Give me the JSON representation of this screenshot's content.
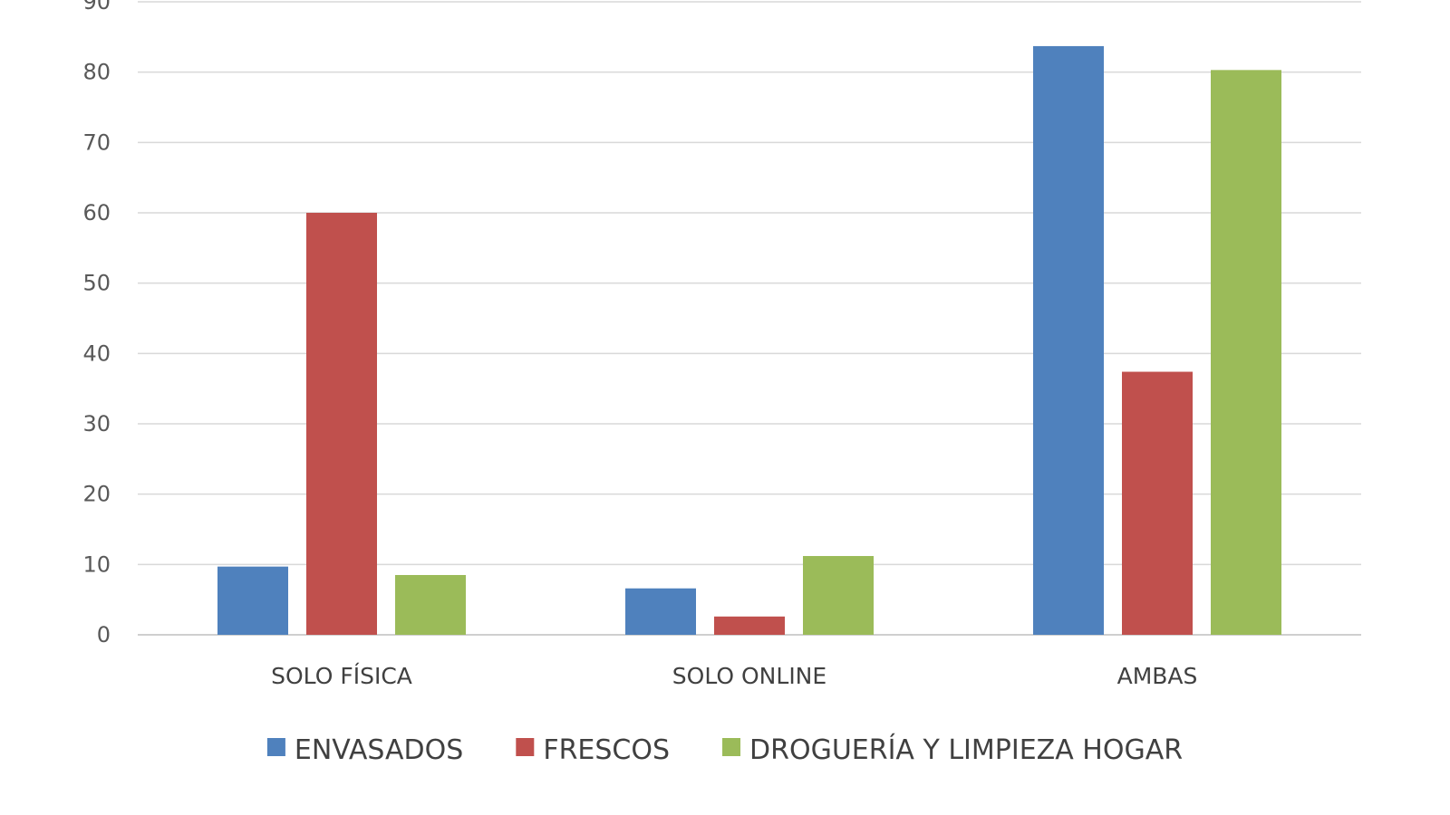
{
  "chart_data": {
    "type": "bar",
    "categories": [
      "SOLO FÍSICA",
      "SOLO ONLINE",
      "AMBAS"
    ],
    "series": [
      {
        "name": "ENVASADOS",
        "color": "#4F81BD",
        "values": [
          9.7,
          6.6,
          83.7
        ]
      },
      {
        "name": "FRESCOS",
        "color": "#C0504D",
        "values": [
          60.0,
          2.6,
          37.4
        ]
      },
      {
        "name": "DROGUERÍA Y LIMPIEZA HOGAR",
        "color": "#9BBB59",
        "values": [
          8.5,
          11.2,
          80.3
        ]
      }
    ],
    "ylim": [
      0,
      90
    ],
    "yticks": [
      0,
      10,
      20,
      30,
      40,
      50,
      60,
      70,
      80,
      90
    ],
    "grid": true,
    "legend_position": "bottom",
    "title": "",
    "xlabel": "",
    "ylabel": ""
  }
}
